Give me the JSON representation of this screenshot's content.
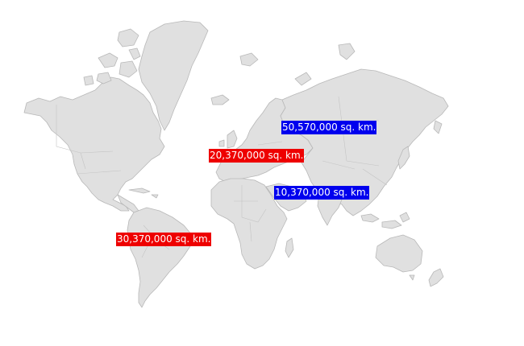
{
  "colors": {
    "land": "#e0e0e0",
    "border": "#b8b8b8",
    "background": "#ffffff",
    "marker_red": "#ee0000",
    "marker_blue": "#0000ee"
  },
  "markers": [
    {
      "id": "north-america",
      "label": "",
      "color": "red"
    },
    {
      "id": "europe",
      "label": "20,370,000 sq. km.",
      "color": "red"
    },
    {
      "id": "asia",
      "label": "50,570,000 sq. km.",
      "color": "blue"
    },
    {
      "id": "africa",
      "label": "10,370,000 sq. km.",
      "color": "blue"
    },
    {
      "id": "south-america",
      "label": "30,370,000 sq. km.",
      "color": "red"
    }
  ]
}
